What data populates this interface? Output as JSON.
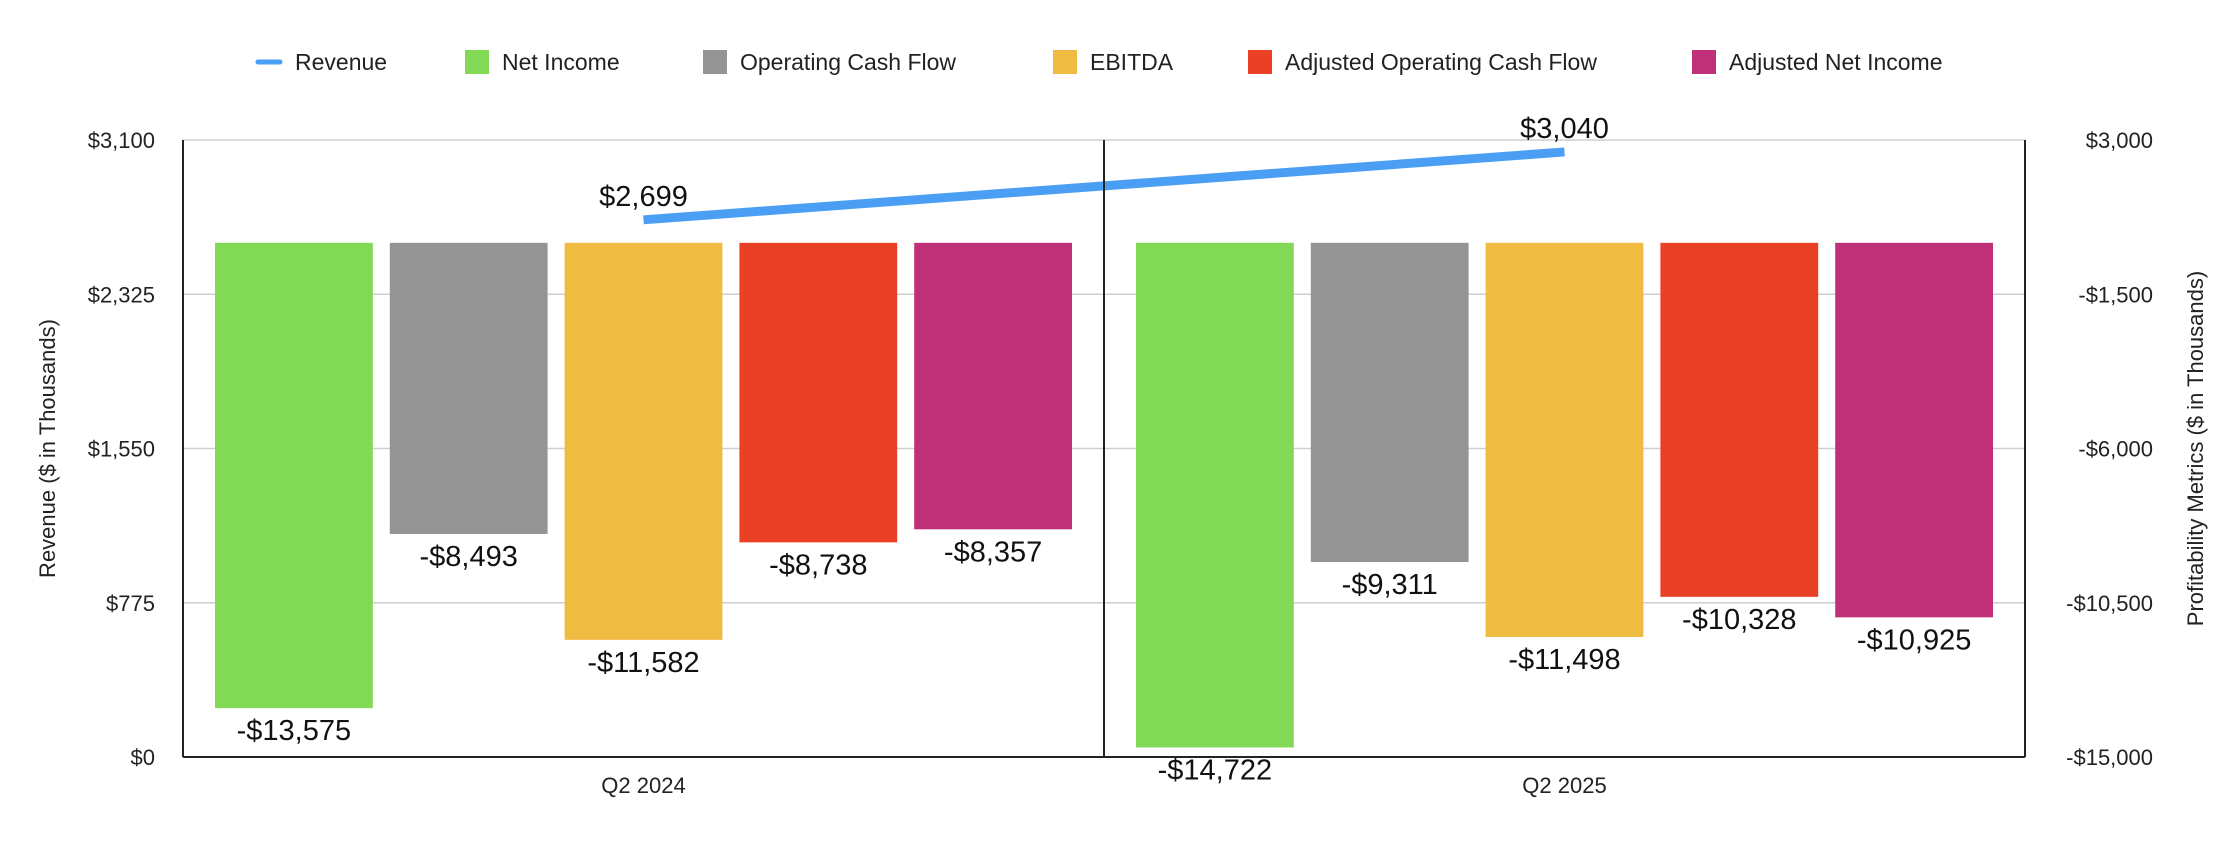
{
  "chart_data": {
    "type": "bar",
    "categories": [
      "Q2 2024",
      "Q2 2025"
    ],
    "legend": [
      {
        "name": "Revenue",
        "kind": "line",
        "color": "#4a9ff5"
      },
      {
        "name": "Net Income",
        "kind": "bar",
        "color": "#82d955"
      },
      {
        "name": "Operating Cash Flow",
        "kind": "bar",
        "color": "#949494"
      },
      {
        "name": "EBITDA",
        "kind": "bar",
        "color": "#efbb41"
      },
      {
        "name": "Adjusted Operating Cash Flow",
        "kind": "bar",
        "color": "#ea4026"
      },
      {
        "name": "Adjusted Net Income",
        "kind": "bar",
        "color": "#c03078"
      }
    ],
    "line_series": {
      "name": "Revenue",
      "axis": "left",
      "values": [
        2699,
        3040
      ],
      "labels": [
        "$2,699",
        "$3,040"
      ],
      "color": "#4a9ff5"
    },
    "bar_series": [
      {
        "name": "Net Income",
        "axis": "right",
        "values": [
          -13575,
          -14722
        ],
        "labels": [
          "-$13,575",
          "-$14,722"
        ],
        "color": "#82d955"
      },
      {
        "name": "Operating Cash Flow",
        "axis": "right",
        "values": [
          -8493,
          -9311
        ],
        "labels": [
          "-$8,493",
          "-$9,311"
        ],
        "color": "#949494"
      },
      {
        "name": "EBITDA",
        "axis": "right",
        "values": [
          -11582,
          -11498
        ],
        "labels": [
          "-$11,582",
          "-$11,498"
        ],
        "color": "#efbb41"
      },
      {
        "name": "Adjusted Operating Cash Flow",
        "axis": "right",
        "values": [
          -8738,
          -10328
        ],
        "labels": [
          "-$8,738",
          "-$10,328"
        ],
        "color": "#ea4026"
      },
      {
        "name": "Adjusted Net Income",
        "axis": "right",
        "values": [
          -8357,
          -10925
        ],
        "labels": [
          "-$8,357",
          "-$10,925"
        ],
        "color": "#c03078"
      }
    ],
    "left_axis": {
      "label": "Revenue ($ in Thousands)",
      "min": 0,
      "max": 3100,
      "ticks": [
        0,
        775,
        1550,
        2325,
        3100
      ],
      "tick_labels": [
        "$0",
        "$775",
        "$1,550",
        "$2,325",
        "$3,100"
      ]
    },
    "right_axis": {
      "label": "Profitability Metrics ($ in Thousands)",
      "min": -15000,
      "max": 3000,
      "ticks": [
        -15000,
        -10500,
        -6000,
        -1500,
        3000
      ],
      "tick_labels": [
        "-$15,000",
        "-$10,500",
        "-$6,000",
        "-$1,500",
        "$3,000"
      ]
    },
    "bar_baseline": 0,
    "grid": true,
    "legend_position": "top"
  }
}
